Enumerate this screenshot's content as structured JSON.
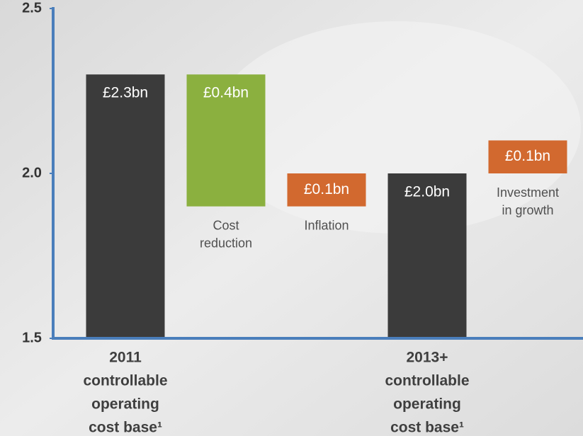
{
  "chart_data": {
    "type": "waterfall",
    "categories": [
      [
        "2011",
        "controllable",
        "operating",
        "cost base¹"
      ],
      [
        "Cost",
        "reduction"
      ],
      [
        "Inflation"
      ],
      [
        "2013+",
        "controllable",
        "operating",
        "cost base¹"
      ],
      [
        "Investment",
        "in growth"
      ]
    ],
    "values": [
      2.3,
      -0.4,
      0.1,
      2.0,
      0.1
    ],
    "value_labels": [
      "£2.3bn",
      "£0.4bn",
      "£0.1bn",
      "£2.0bn",
      "£0.1bn"
    ],
    "is_total": [
      true,
      false,
      false,
      true,
      false
    ],
    "colors": [
      "#3b3b3b",
      "#8bb03f",
      "#d2692f",
      "#3b3b3b",
      "#d2692f"
    ],
    "ylim": [
      1.5,
      2.5
    ],
    "yticks": [
      1.5,
      {
        "value": 2,
        "label": "2.0"
      },
      2.5
    ]
  }
}
